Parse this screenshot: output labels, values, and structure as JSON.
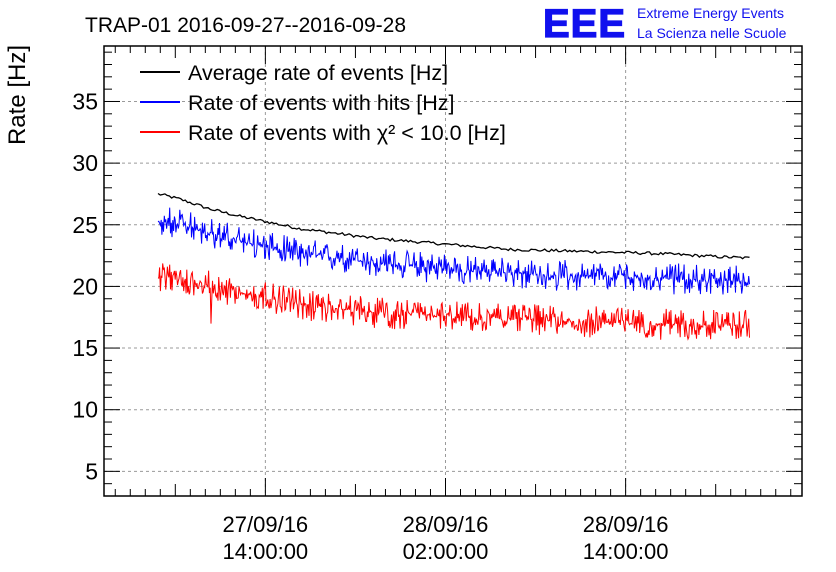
{
  "branding": {
    "logo": "EEE",
    "line1": "Extreme Energy Events",
    "line2": "La Scienza nelle Scuole"
  },
  "chart_data": {
    "type": "line",
    "title": "TRAP-01 2016-09-27--2016-09-28",
    "xlabel": "",
    "ylabel": "Rate [Hz]",
    "xlim_hours": [
      0,
      46.5
    ],
    "ylim": [
      3,
      39.5
    ],
    "grid": true,
    "yticks": [
      5,
      10,
      15,
      20,
      25,
      30,
      35
    ],
    "xticks": [
      {
        "t": 10.75,
        "date": "27/09/16",
        "time": "14:00:00"
      },
      {
        "t": 22.75,
        "date": "28/09/16",
        "time": "02:00:00"
      },
      {
        "t": 34.75,
        "date": "28/09/16",
        "time": "14:00:00"
      }
    ],
    "legend_position": "top-left",
    "series": [
      {
        "name": "Average rate of events [Hz]",
        "color": "#000000",
        "noise": 0.12,
        "x": [
          3.6,
          4.0,
          5.0,
          7.0,
          9.0,
          11.0,
          13.0,
          15.5,
          18.0,
          21.0,
          24.0,
          27.0,
          30.0,
          33.0,
          36.0,
          38.0,
          41.0,
          43.0
        ],
        "y": [
          27.5,
          27.4,
          27.1,
          26.3,
          25.7,
          25.2,
          24.7,
          24.3,
          23.9,
          23.6,
          23.3,
          23.0,
          22.9,
          22.8,
          22.7,
          22.6,
          22.4,
          22.3
        ]
      },
      {
        "name": "Rate of events with hits [Hz]",
        "color": "#0000ff",
        "noise": 0.8,
        "x": [
          3.6,
          5.0,
          7.0,
          9.0,
          11.0,
          13.0,
          15.5,
          18.0,
          21.0,
          24.0,
          27.0,
          30.0,
          33.0,
          36.0,
          38.0,
          41.0,
          43.0
        ],
        "y": [
          25.3,
          25.0,
          24.4,
          23.7,
          23.1,
          22.7,
          22.3,
          21.9,
          21.6,
          21.3,
          21.1,
          20.9,
          20.8,
          20.7,
          20.6,
          20.5,
          20.4
        ]
      },
      {
        "name": "Rate of events with χ² < 10.0 [Hz]",
        "color": "#ff0000",
        "noise": 0.8,
        "x": [
          3.6,
          5.0,
          7.0,
          9.0,
          11.0,
          13.0,
          15.5,
          18.0,
          21.0,
          24.0,
          27.0,
          30.0,
          33.0,
          36.0,
          38.0,
          41.0,
          43.0
        ],
        "y": [
          20.8,
          20.5,
          20.0,
          19.5,
          19.0,
          18.6,
          18.2,
          17.9,
          17.7,
          17.5,
          17.4,
          17.2,
          17.1,
          17.0,
          16.9,
          16.9,
          16.8
        ]
      }
    ]
  }
}
